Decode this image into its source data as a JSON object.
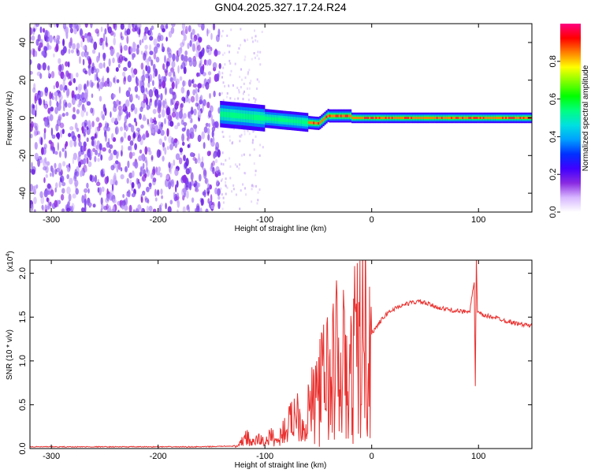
{
  "chart_data": [
    {
      "type": "heatmap",
      "title": "GN04.2025.327.17.24.R24",
      "xlabel": "Height of straight line (km)",
      "ylabel": "Frequency (Hz)",
      "xlim": [
        -320,
        150
      ],
      "ylim": [
        -50,
        50
      ],
      "xticks": [
        -300,
        -200,
        -100,
        0,
        100
      ],
      "yticks": [
        -40,
        -20,
        0,
        20,
        40
      ],
      "colorbar": {
        "label": "Normalized spectral amplitude",
        "range": [
          0,
          1
        ],
        "ticks": [
          0.0,
          0.2,
          0.4,
          0.6,
          0.8
        ],
        "colors": [
          "#ffffff",
          "#d8b8ff",
          "#8a2be2",
          "#4000ff",
          "#0030ff",
          "#00a0ff",
          "#00e0e0",
          "#00ff80",
          "#00ff00",
          "#80ff00",
          "#ffff00",
          "#ff8000",
          "#ff0000",
          "#ff0080"
        ]
      },
      "regions": [
        {
          "name": "noise",
          "x": [
            -320,
            -142
          ],
          "frequency": [
            -50,
            50
          ],
          "amplitude": 0.1
        },
        {
          "name": "signal",
          "x": [
            -142,
            150
          ],
          "frequency_center": 0,
          "amplitude_max": 1.0
        }
      ]
    },
    {
      "type": "line",
      "xlabel": "Height of straight line (km)",
      "ylabel": "SNR (10 * v/v)",
      "y_exponent_label": "(x10",
      "y_exponent": "4",
      "y_exponent_close": ")",
      "xlim": [
        -320,
        150
      ],
      "ylim": [
        0,
        2.15
      ],
      "xticks": [
        -300,
        -200,
        -100,
        0,
        100
      ],
      "yticks": [
        "0.0",
        "0.5",
        "1.0",
        "1.5",
        "2.0"
      ],
      "series": [
        {
          "color": "#e8302e",
          "x": [
            -320,
            -240,
            -160,
            -125,
            -118,
            -112,
            -106,
            -100,
            -94,
            -88,
            -84,
            -78,
            -74,
            -70,
            -66,
            -62,
            -58,
            -54,
            -50,
            -46,
            -42,
            -38,
            -34,
            -30,
            -26,
            -22,
            -18,
            -14,
            -10,
            -6,
            -2,
            2,
            8,
            15,
            25,
            35,
            45,
            55,
            65,
            75,
            85,
            92,
            96,
            97,
            98,
            99,
            100,
            104,
            115,
            125,
            135,
            150
          ],
          "y": [
            0.02,
            0.02,
            0.02,
            0.03,
            0.2,
            0.08,
            0.15,
            0.1,
            0.2,
            0.1,
            0.25,
            0.35,
            0.5,
            0.6,
            0.4,
            0.3,
            0.65,
            0.55,
            0.9,
            0.85,
            1.1,
            0.7,
            1.5,
            0.6,
            1.4,
            0.5,
            1.3,
            1.4,
            1.5,
            1.55,
            1.3,
            1.35,
            1.45,
            1.55,
            1.62,
            1.66,
            1.68,
            1.64,
            1.6,
            1.58,
            1.56,
            1.58,
            1.9,
            0.7,
            2.15,
            1.55,
            1.55,
            1.52,
            1.5,
            1.46,
            1.43,
            1.4
          ]
        }
      ]
    }
  ]
}
